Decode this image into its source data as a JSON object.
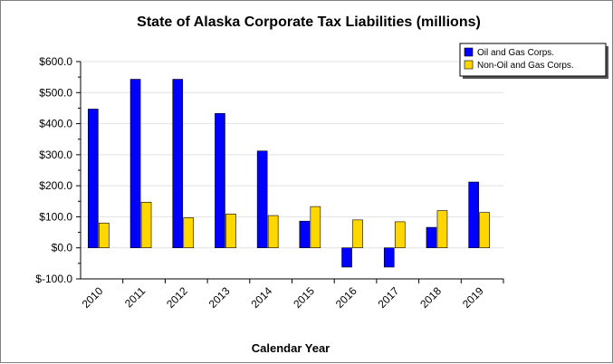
{
  "chart_data": {
    "type": "bar",
    "title": "State of Alaska Corporate Tax Liabilities (millions)",
    "xlabel": "Calendar Year",
    "ylabel": "",
    "categories": [
      "2010",
      "2011",
      "2012",
      "2013",
      "2014",
      "2015",
      "2016",
      "2017",
      "2018",
      "2019"
    ],
    "series": [
      {
        "name": "Oil and Gas Corps.",
        "color": "#0000ff",
        "values": [
          447,
          543,
          543,
          433,
          312,
          86,
          -62,
          -62,
          66,
          212
        ]
      },
      {
        "name": "Non-Oil and Gas Corps.",
        "color": "#ffd700",
        "values": [
          80,
          147,
          97,
          109,
          104,
          133,
          90,
          84,
          120,
          114
        ]
      }
    ],
    "yticks": [
      {
        "value": 600,
        "label": "$600.0"
      },
      {
        "value": 500,
        "label": "$500.0"
      },
      {
        "value": 400,
        "label": "$400.0"
      },
      {
        "value": 300,
        "label": "$300.0"
      },
      {
        "value": 200,
        "label": "$200.0"
      },
      {
        "value": 100,
        "label": "$100.0"
      },
      {
        "value": 0,
        "label": "$0.0"
      },
      {
        "value": -100,
        "label": "$-100.0"
      }
    ],
    "ylim": [
      -100,
      600
    ],
    "grid": true,
    "legend_position": "top-right"
  }
}
